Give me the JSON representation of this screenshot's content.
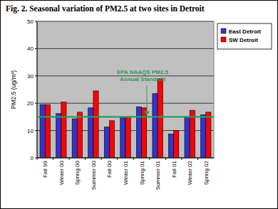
{
  "chart_data": {
    "type": "bar",
    "title": "Fig. 2.  Seasonal variation of PM2.5 at two sites in Detroit",
    "y_label": "PM2.5 (ug/m³)",
    "categories": [
      "Fall 99",
      "Winter 00",
      "Spring 00",
      "Summer 00",
      "Fall 00",
      "Winter 01",
      "Spring 01",
      "Summer 01",
      "Fall 01",
      "Winter 02",
      "Spring 02"
    ],
    "series": [
      {
        "name": "East Detroit",
        "color": "#3333cc",
        "values": [
          19.5,
          16.2,
          14.3,
          18.3,
          11.3,
          14.7,
          18.7,
          23.5,
          8.7,
          15.0,
          15.8
        ]
      },
      {
        "name": "SW Detroit",
        "color": "#ff0000",
        "values": [
          19.5,
          20.4,
          16.7,
          24.5,
          13.6,
          15.0,
          18.3,
          29.0,
          10.0,
          17.4,
          16.7
        ]
      }
    ],
    "reference_line": {
      "value": 15,
      "label": [
        "EPA NAAQS PM2.5",
        "Annual Standard"
      ],
      "color": "#2e9a5a"
    },
    "ylim": [
      0,
      50
    ],
    "yticks": [
      0,
      10,
      20,
      30,
      40,
      50
    ],
    "grid": true,
    "legend": "top-right"
  }
}
